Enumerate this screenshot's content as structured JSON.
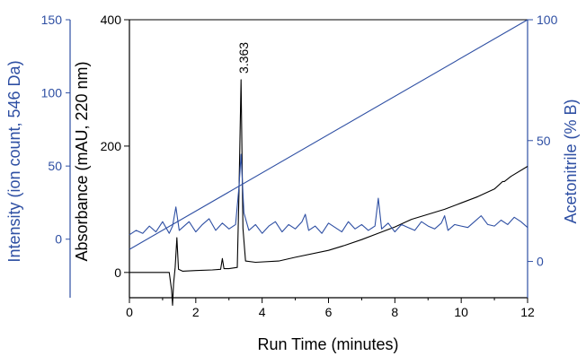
{
  "chart_data": {
    "type": "line",
    "xlabel": "Run Time (minutes)",
    "x_ticks": [
      "0",
      "2",
      "4",
      "6",
      "8",
      "10",
      "12"
    ],
    "xlim": [
      0,
      12
    ],
    "axes": {
      "absorbance": {
        "label": "Absorbance (mAU, 220 nm)",
        "ylim": [
          -40,
          400
        ],
        "ticks": [
          "0",
          "200",
          "400"
        ],
        "color": "#000000"
      },
      "intensity": {
        "label": "Intensity (ion count, 546 Da)",
        "ylim": [
          -40,
          150
        ],
        "ticks": [
          "0",
          "50",
          "100",
          "150"
        ],
        "color": "#2e4fa3"
      },
      "acetonitrile": {
        "label": "Acetonitrile (% B)",
        "ylim": [
          -15,
          100
        ],
        "ticks": [
          "0",
          "50",
          "100"
        ],
        "color": "#2e4fa3"
      }
    },
    "peak_annotation": {
      "text": "3.363",
      "x": 3.363
    },
    "series": [
      {
        "axis": "absorbance",
        "color": "#000000",
        "x": [
          0,
          0.5,
          1.0,
          1.2,
          1.27,
          1.3,
          1.33,
          1.38,
          1.43,
          1.48,
          1.6,
          2.0,
          2.5,
          2.75,
          2.8,
          2.85,
          3.0,
          3.25,
          3.3,
          3.363,
          3.42,
          3.5,
          3.8,
          4.5,
          5.0,
          6.0,
          6.5,
          7.0,
          7.5,
          8.0,
          8.5,
          9.0,
          9.5,
          10.0,
          10.5,
          11.0,
          11.25,
          11.3,
          11.5,
          12.0
        ],
        "y": [
          0,
          0,
          0,
          0,
          -28,
          -52,
          -18,
          8,
          55,
          5,
          2,
          3,
          4,
          5,
          22,
          6,
          6,
          8,
          120,
          305,
          70,
          18,
          16,
          18,
          24,
          35,
          43,
          52,
          62,
          72,
          84,
          92,
          100,
          110,
          120,
          132,
          144,
          144,
          152,
          168
        ]
      },
      {
        "axis": "intensity",
        "color": "#2e4fa3",
        "x": [
          0,
          0.2,
          0.4,
          0.6,
          0.8,
          1.0,
          1.2,
          1.3,
          1.4,
          1.5,
          1.6,
          1.8,
          2.0,
          2.2,
          2.4,
          2.6,
          2.8,
          3.0,
          3.2,
          3.3,
          3.363,
          3.45,
          3.6,
          3.8,
          4.0,
          4.2,
          4.4,
          4.6,
          4.8,
          5.0,
          5.2,
          5.3,
          5.4,
          5.6,
          5.8,
          6.0,
          6.2,
          6.4,
          6.6,
          6.8,
          7.0,
          7.2,
          7.4,
          7.5,
          7.6,
          7.8,
          8.0,
          8.2,
          8.4,
          8.6,
          8.8,
          9.0,
          9.2,
          9.4,
          9.5,
          9.6,
          9.8,
          10.0,
          10.2,
          10.4,
          10.6,
          10.8,
          11.0,
          11.2,
          11.4,
          11.6,
          11.8,
          12.0
        ],
        "y": [
          3,
          6,
          4,
          9,
          5,
          12,
          4,
          9,
          22,
          6,
          8,
          12,
          5,
          10,
          14,
          6,
          11,
          7,
          10,
          35,
          58,
          18,
          6,
          10,
          4,
          9,
          12,
          5,
          10,
          7,
          12,
          17,
          6,
          9,
          4,
          11,
          8,
          5,
          12,
          7,
          10,
          6,
          9,
          28,
          7,
          11,
          5,
          10,
          8,
          6,
          12,
          9,
          7,
          11,
          16,
          6,
          10,
          9,
          8,
          12,
          16,
          10,
          9,
          13,
          10,
          15,
          12,
          8
        ]
      },
      {
        "axis": "acetonitrile",
        "color": "#2e4fa3",
        "x": [
          0,
          12
        ],
        "y": [
          5,
          100
        ]
      }
    ]
  }
}
